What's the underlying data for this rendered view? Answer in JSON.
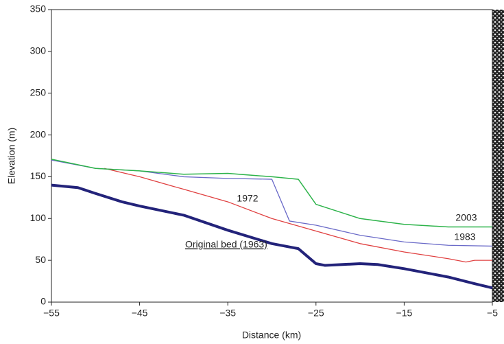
{
  "chart_data": {
    "type": "line",
    "x_label": "Distance (km)",
    "y_label": "Elevation (m)",
    "xlim": [
      -55,
      -5
    ],
    "ylim": [
      0,
      350
    ],
    "xticks": [
      {
        "value": -55,
        "label": "−55"
      },
      {
        "value": -45,
        "label": "−45"
      },
      {
        "value": -35,
        "label": "−35"
      },
      {
        "value": -25,
        "label": "−25"
      },
      {
        "value": -15,
        "label": "−15"
      },
      {
        "value": -5,
        "label": "−5"
      }
    ],
    "yticks": [
      0,
      50,
      100,
      150,
      200,
      250,
      300,
      350
    ],
    "grid": false,
    "series": [
      {
        "name": "Original bed (1963)",
        "color": "#23237a",
        "x": [
          -55,
          -52,
          -50,
          -47,
          -45,
          -40,
          -35,
          -30,
          -28,
          -27,
          -26,
          -25,
          -24,
          -22,
          -20,
          -18,
          -15,
          -10,
          -7,
          -5
        ],
        "values": [
          140,
          137,
          130,
          120,
          115,
          104,
          86,
          70,
          66,
          64,
          55,
          46,
          44,
          45,
          46,
          45,
          40,
          30,
          22,
          17
        ]
      },
      {
        "name": "1972",
        "color": "#e04040",
        "x": [
          -49,
          -45,
          -40,
          -35,
          -30,
          -25,
          -20,
          -15,
          -10,
          -8,
          -7,
          -5
        ],
        "values": [
          160,
          150,
          135,
          120,
          100,
          85,
          70,
          60,
          52,
          48,
          50,
          50
        ]
      },
      {
        "name": "1983",
        "color": "#6a6ac8",
        "x": [
          -55,
          -50,
          -45,
          -40,
          -35,
          -30,
          -28,
          -25,
          -20,
          -15,
          -10,
          -5
        ],
        "values": [
          170,
          160,
          157,
          150,
          148,
          147,
          97,
          92,
          80,
          72,
          68,
          67
        ]
      },
      {
        "name": "2003",
        "color": "#2db34a",
        "x": [
          -55,
          -50,
          -45,
          -40,
          -35,
          -30,
          -27,
          -25,
          -20,
          -15,
          -10,
          -5
        ],
        "values": [
          171,
          160,
          157,
          153,
          154,
          150,
          147,
          117,
          100,
          93,
          90,
          90
        ]
      }
    ]
  }
}
